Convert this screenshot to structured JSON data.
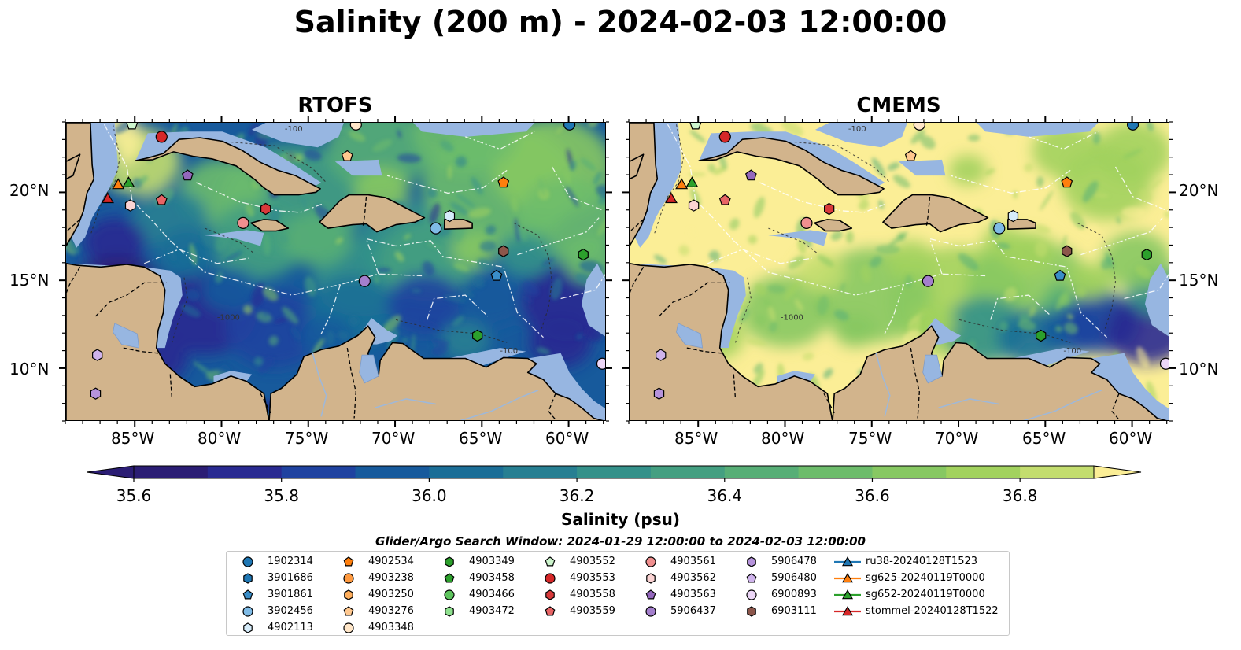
{
  "figure": {
    "title": "Salinity (200 m) - 2024-02-03 12:00:00",
    "panels": [
      {
        "name": "RTOFS",
        "palette": "rtofs"
      },
      {
        "name": "CMEMS",
        "palette": "cmems"
      }
    ],
    "lon_ticks": [
      "85°W",
      "80°W",
      "75°W",
      "70°W",
      "65°W",
      "60°W"
    ],
    "lat_ticks": [
      "20°N",
      "15°N",
      "10°N"
    ],
    "contour_labels": [
      "-100",
      "-1000",
      "-100"
    ]
  },
  "colors": {
    "land": "#d2b48c",
    "shelf": "#97b6e1",
    "low_salinity": "#2a1a6e",
    "high_salinity": "#fde98a"
  },
  "colorbar": {
    "min": 35.6,
    "max": 36.9,
    "step": 0.1,
    "tick_labels": [
      "35.6",
      "35.8",
      "36.0",
      "36.2",
      "36.4",
      "36.6",
      "36.8"
    ],
    "label": "Salinity (psu)",
    "colors": [
      "#2b1d74",
      "#292a91",
      "#1f42a0",
      "#175a9c",
      "#1b6e97",
      "#277f92",
      "#34918a",
      "#449f81",
      "#57ae76",
      "#6dbc6b",
      "#87c862",
      "#a2d25e",
      "#c3dd6f",
      "#fbee96"
    ]
  },
  "legend": {
    "title": "Glider/Argo Search Window: 2024-01-29 12:00:00 to 2024-02-03 12:00:00",
    "items": [
      {
        "label": "1902314",
        "marker": "circle",
        "color": "#1f77b4"
      },
      {
        "label": "3901686",
        "marker": "hexagon",
        "color": "#1f77b4"
      },
      {
        "label": "3901861",
        "marker": "pentagon",
        "color": "#3a8ec9"
      },
      {
        "label": "3902456",
        "marker": "circle",
        "color": "#7fbbe6"
      },
      {
        "label": "4902113",
        "marker": "hexagon",
        "color": "#d6ecfa"
      },
      {
        "label": "4902534",
        "marker": "pentagon",
        "color": "#ff7f0e"
      },
      {
        "label": "4903238",
        "marker": "circle",
        "color": "#ff9a40"
      },
      {
        "label": "4903250",
        "marker": "hexagon",
        "color": "#ffae5c"
      },
      {
        "label": "4903276",
        "marker": "pentagon",
        "color": "#ffc88f"
      },
      {
        "label": "4903348",
        "marker": "circle",
        "color": "#ffe6c8"
      },
      {
        "label": "4903349",
        "marker": "hexagon",
        "color": "#2ca02c"
      },
      {
        "label": "4903458",
        "marker": "pentagon",
        "color": "#2ca02c"
      },
      {
        "label": "4903466",
        "marker": "circle",
        "color": "#5ec45e"
      },
      {
        "label": "4903472",
        "marker": "hexagon",
        "color": "#8ee08e"
      },
      {
        "label": "4903552",
        "marker": "pentagon",
        "color": "#cdf5cd"
      },
      {
        "label": "4903553",
        "marker": "circle",
        "color": "#d62728"
      },
      {
        "label": "4903558",
        "marker": "hexagon",
        "color": "#d93a3b"
      },
      {
        "label": "4903559",
        "marker": "pentagon",
        "color": "#e86465"
      },
      {
        "label": "4903561",
        "marker": "circle",
        "color": "#f08f8f"
      },
      {
        "label": "4903562",
        "marker": "hexagon",
        "color": "#fbd3d3"
      },
      {
        "label": "4903563",
        "marker": "pentagon",
        "color": "#9467bd"
      },
      {
        "label": "5906437",
        "marker": "circle",
        "color": "#a47fcd"
      },
      {
        "label": "5906478",
        "marker": "hexagon",
        "color": "#b693dc"
      },
      {
        "label": "5906480",
        "marker": "pentagon",
        "color": "#cfb3ec"
      },
      {
        "label": "6900893",
        "marker": "circle",
        "color": "#ecd6f7"
      },
      {
        "label": "6903111",
        "marker": "hexagon",
        "color": "#8c564b"
      },
      {
        "label": "ru38-20240128T1523",
        "marker": "triangle",
        "color": "#1f77b4",
        "line": true
      },
      {
        "label": "sg625-20240119T0000",
        "marker": "triangle",
        "color": "#ff7f0e",
        "line": true
      },
      {
        "label": "sg652-20240119T0000",
        "marker": "triangle",
        "color": "#2ca02c",
        "line": true
      },
      {
        "label": "stommel-20240128T1522",
        "marker": "triangle",
        "color": "#d62728",
        "line": true
      }
    ]
  },
  "map_markers": [
    {
      "lon": -83.5,
      "lat": 23.2,
      "marker": "circle",
      "color": "#d62728"
    },
    {
      "lon": -85.2,
      "lat": 23.9,
      "marker": "pentagon",
      "color": "#cdf5cd"
    },
    {
      "lon": -72.3,
      "lat": 23.9,
      "marker": "circle",
      "color": "#ffe6c8"
    },
    {
      "lon": -60.0,
      "lat": 23.9,
      "marker": "circle",
      "color": "#1f77b4"
    },
    {
      "lon": -72.8,
      "lat": 22.1,
      "marker": "pentagon",
      "color": "#ffc88f"
    },
    {
      "lon": -82.0,
      "lat": 21.0,
      "marker": "pentagon",
      "color": "#9467bd"
    },
    {
      "lon": -63.8,
      "lat": 20.6,
      "marker": "pentagon",
      "color": "#ff7f0e"
    },
    {
      "lon": -85.4,
      "lat": 20.6,
      "marker": "triangle",
      "color": "#2ca02c"
    },
    {
      "lon": -86.0,
      "lat": 20.5,
      "marker": "triangle",
      "color": "#ff7f0e"
    },
    {
      "lon": -86.6,
      "lat": 19.7,
      "marker": "triangle",
      "color": "#d62728"
    },
    {
      "lon": -83.5,
      "lat": 19.6,
      "marker": "pentagon",
      "color": "#e86465"
    },
    {
      "lon": -85.3,
      "lat": 19.3,
      "marker": "hexagon",
      "color": "#fbd3d3"
    },
    {
      "lon": -77.5,
      "lat": 19.1,
      "marker": "hexagon",
      "color": "#d93a3b"
    },
    {
      "lon": -66.9,
      "lat": 18.7,
      "marker": "hexagon",
      "color": "#d6ecfa"
    },
    {
      "lon": -78.8,
      "lat": 18.3,
      "marker": "circle",
      "color": "#f08f8f"
    },
    {
      "lon": -67.7,
      "lat": 18.0,
      "marker": "circle",
      "color": "#7fbbe6"
    },
    {
      "lon": -63.8,
      "lat": 16.7,
      "marker": "hexagon",
      "color": "#8c564b"
    },
    {
      "lon": -59.2,
      "lat": 16.5,
      "marker": "hexagon",
      "color": "#2ca02c"
    },
    {
      "lon": -64.2,
      "lat": 15.3,
      "marker": "pentagon",
      "color": "#3a8ec9"
    },
    {
      "lon": -71.8,
      "lat": 15.0,
      "marker": "circle",
      "color": "#a47fcd"
    },
    {
      "lon": -65.3,
      "lat": 11.9,
      "marker": "hexagon",
      "color": "#2ca02c"
    },
    {
      "lon": -87.2,
      "lat": 10.8,
      "marker": "hexagon",
      "color": "#cfb3ec"
    },
    {
      "lon": -58.1,
      "lat": 10.3,
      "marker": "circle",
      "color": "#ecd6f7"
    },
    {
      "lon": -87.3,
      "lat": 8.6,
      "marker": "hexagon",
      "color": "#b693dc"
    }
  ]
}
